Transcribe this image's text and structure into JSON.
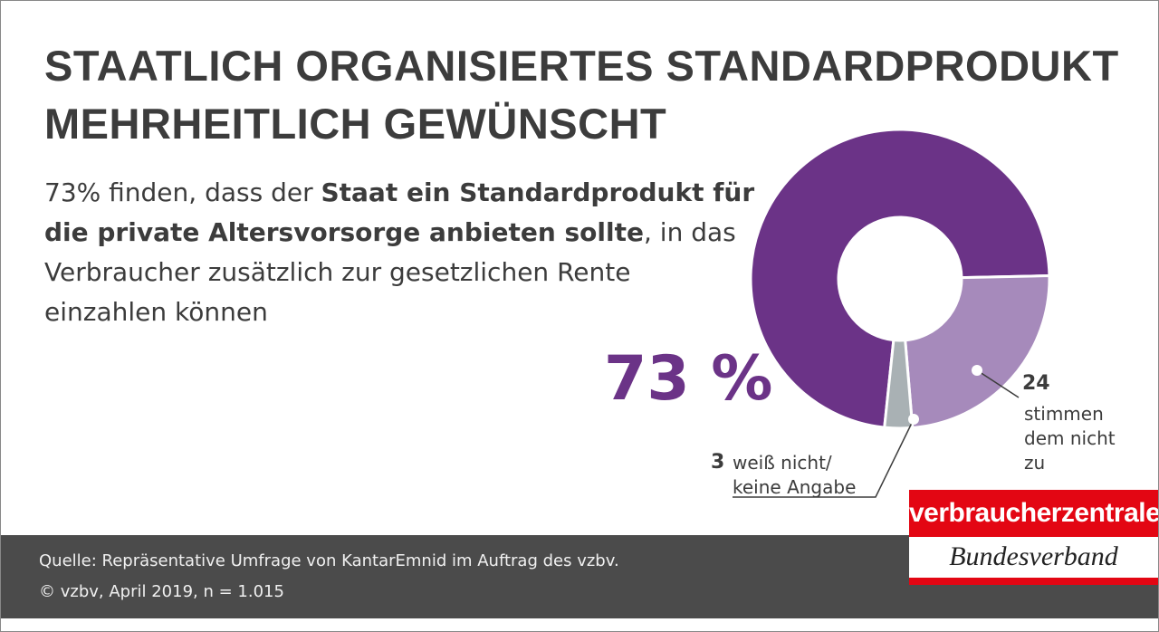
{
  "chart_data": {
    "type": "donut",
    "title": [
      "STAATLICH ORGANISIERTES STANDARDPRODUKT",
      "MEHRHEITLICH GEWÜNSCHT"
    ],
    "subtitle": [
      "73% finden, dass der ",
      "Staat ein Standardprodukt für die private Altersvorsorge anbieten sollte",
      ", in das Verbraucher zusätzlich zur gesetzlichen Rente einzahlen können"
    ],
    "categories": [
      null,
      "stimmen dem nicht zu",
      "weiß nicht/ keine Angabe"
    ],
    "values": [
      73,
      24,
      3
    ],
    "value_labels": [
      "73 %",
      "24",
      "3"
    ],
    "colors": [
      "#6b3387",
      "#a68abb",
      "#a9b1b4"
    ]
  },
  "footer": {
    "source": "Quelle: Repräsentative Umfrage von KantarEmnid im Auftrag des vzbv.",
    "copyright": "© vzbv, April 2019, n = 1.015"
  },
  "logo": {
    "line1": "verbraucherzentrale",
    "line2": "Bundesverband"
  }
}
